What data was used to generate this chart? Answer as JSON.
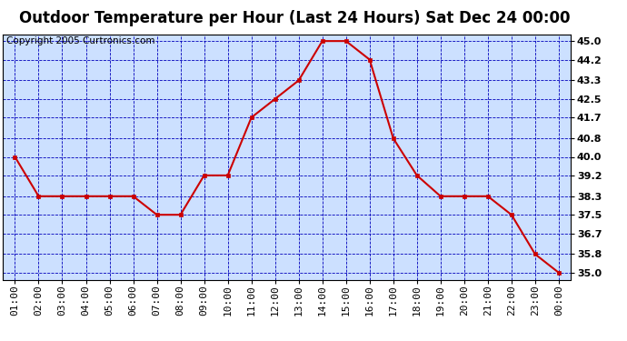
{
  "title": "Outdoor Temperature per Hour (Last 24 Hours) Sat Dec 24 00:00",
  "copyright": "Copyright 2005 Curtronics.com",
  "x_labels": [
    "01:00",
    "02:00",
    "03:00",
    "04:00",
    "05:00",
    "06:00",
    "07:00",
    "08:00",
    "09:00",
    "10:00",
    "11:00",
    "12:00",
    "13:00",
    "14:00",
    "15:00",
    "16:00",
    "17:00",
    "18:00",
    "19:00",
    "20:00",
    "21:00",
    "22:00",
    "23:00",
    "00:00"
  ],
  "y_values": [
    40.0,
    38.3,
    38.3,
    38.3,
    38.3,
    38.3,
    37.5,
    37.5,
    39.2,
    39.2,
    41.7,
    42.5,
    43.3,
    45.0,
    45.0,
    44.2,
    40.8,
    39.2,
    38.3,
    38.3,
    38.3,
    37.5,
    35.8,
    35.0
  ],
  "y_ticks": [
    35.0,
    35.8,
    36.7,
    37.5,
    38.3,
    39.2,
    40.0,
    40.8,
    41.7,
    42.5,
    43.3,
    44.2,
    45.0
  ],
  "ylim": [
    34.7,
    45.3
  ],
  "line_color": "#cc0000",
  "marker_color": "#cc0000",
  "fig_bg_color": "#ffffff",
  "plot_bg_color": "#cce0ff",
  "grid_color": "#0000bb",
  "border_color": "#000000",
  "title_fontsize": 12,
  "copyright_fontsize": 7.5,
  "tick_label_fontsize": 8
}
